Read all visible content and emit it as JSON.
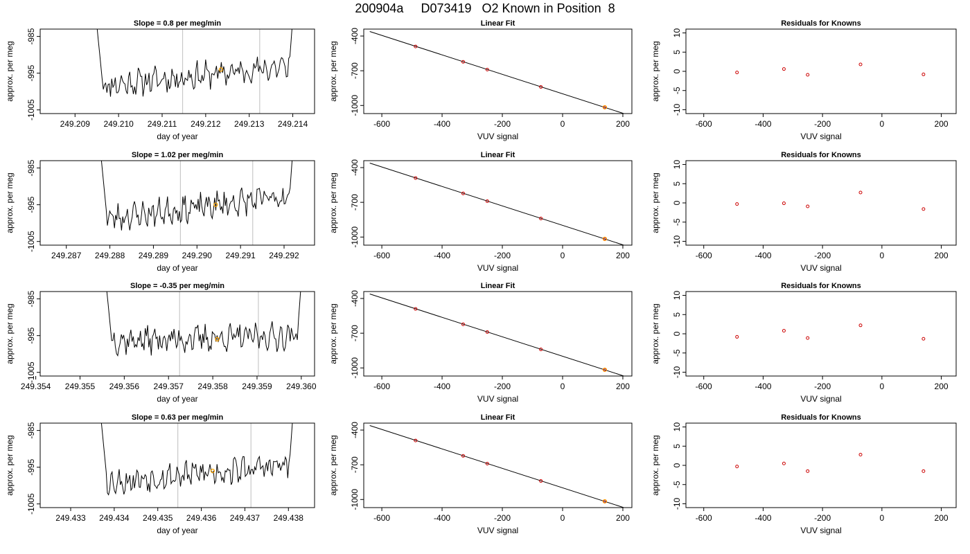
{
  "figure": {
    "title": "200904a     D073419   O2 Known in Position  8"
  },
  "colors": {
    "trace": "#000000",
    "highlight": "#ffa500",
    "residual": "#cc0000",
    "vline": "#c8c8c8",
    "frame": "#000000"
  },
  "chart_data": [
    {
      "type": "line",
      "title": "Slope =  0.8  per meg/min",
      "xlabel": "day of year",
      "ylabel": "approx. per meg",
      "xlim": [
        249.2082,
        249.2145
      ],
      "ylim": [
        -1006,
        -983
      ],
      "xticks": [
        "249.209",
        "249.210",
        "249.211",
        "249.212",
        "249.213",
        "249.214"
      ],
      "yticks": [
        "-985",
        "-995",
        "-1005"
      ],
      "vlines": [
        249.21147,
        249.21324
      ],
      "highlight": {
        "x": 249.21235,
        "y": -994
      },
      "trace": {
        "x_start": 249.2094,
        "x_end": 249.2141,
        "base": -997,
        "trend": 0.8,
        "seed": 11
      }
    },
    {
      "type": "scatter",
      "title": "Linear Fit",
      "xlabel": "VUV signal",
      "ylabel": "approx. per meg",
      "xlim": [
        -660,
        230
      ],
      "ylim": [
        -1070,
        -340
      ],
      "xticks": [
        "-600",
        "-400",
        "-200",
        "0",
        "200"
      ],
      "yticks": [
        "-400",
        "-700",
        "-1000"
      ],
      "points": {
        "x": [
          -488,
          -330,
          -250,
          -72,
          140
        ],
        "y": [
          -490,
          -623,
          -690,
          -840,
          -1016
        ]
      },
      "fit_line": {
        "x": [
          -640,
          220
        ],
        "y": [
          -361,
          -1084
        ]
      }
    },
    {
      "type": "scatter",
      "title": "Residuals for Knowns",
      "xlabel": "VUV signal",
      "ylabel": "approx. per meg",
      "xlim": [
        -660,
        250
      ],
      "ylim": [
        -11,
        11
      ],
      "xticks": [
        "-600",
        "-400",
        "-200",
        "0",
        "200"
      ],
      "yticks": [
        "-10",
        "-5",
        "0",
        "5",
        "10"
      ],
      "points": {
        "x": [
          -488,
          -330,
          -250,
          -72,
          140
        ],
        "y": [
          -0.3,
          0.6,
          -0.9,
          1.8,
          -0.8
        ]
      }
    },
    {
      "type": "line",
      "title": "Slope =  1.02  per meg/min",
      "xlabel": "day of year",
      "ylabel": "approx. per meg",
      "xlim": [
        249.2864,
        249.2927
      ],
      "ylim": [
        -1006,
        -983
      ],
      "xticks": [
        "249.287",
        "249.288",
        "249.289",
        "249.290",
        "249.291",
        "249.292"
      ],
      "yticks": [
        "-985",
        "-995",
        "-1005"
      ],
      "vlines": [
        249.28962,
        249.29128
      ],
      "highlight": {
        "x": 249.29043,
        "y": -995
      },
      "trace": {
        "x_start": 249.2877,
        "x_end": 249.2923,
        "base": -997,
        "trend": 1.02,
        "seed": 23
      }
    },
    {
      "type": "scatter",
      "title": "Linear Fit",
      "xlabel": "VUV signal",
      "ylabel": "approx. per meg",
      "xlim": [
        -660,
        230
      ],
      "ylim": [
        -1070,
        -340
      ],
      "xticks": [
        "-600",
        "-400",
        "-200",
        "0",
        "200"
      ],
      "yticks": [
        "-400",
        "-700",
        "-1000"
      ],
      "points": {
        "x": [
          -488,
          -330,
          -250,
          -72,
          140
        ],
        "y": [
          -490,
          -623,
          -690,
          -840,
          -1016
        ]
      },
      "fit_line": {
        "x": [
          -640,
          220
        ],
        "y": [
          -361,
          -1084
        ]
      }
    },
    {
      "type": "scatter",
      "title": "Residuals for Knowns",
      "xlabel": "VUV signal",
      "ylabel": "approx. per meg",
      "xlim": [
        -660,
        250
      ],
      "ylim": [
        -11,
        11
      ],
      "xticks": [
        "-600",
        "-400",
        "-200",
        "0",
        "200"
      ],
      "yticks": [
        "-10",
        "-5",
        "0",
        "5",
        "10"
      ],
      "points": {
        "x": [
          -488,
          -330,
          -250,
          -72,
          140
        ],
        "y": [
          -0.3,
          -0.1,
          -0.9,
          2.7,
          -1.6
        ]
      }
    },
    {
      "type": "line",
      "title": "Slope =  -0.35  per meg/min",
      "xlabel": "day of year",
      "ylabel": "approx. per meg",
      "xlim": [
        249.3541,
        249.3603
      ],
      "ylim": [
        -1006,
        -983
      ],
      "xticks": [
        "249.354",
        "249.355",
        "249.356",
        "249.357",
        "249.358",
        "249.359",
        "249.360"
      ],
      "yticks": [
        "-985",
        "-995",
        "-1005"
      ],
      "vlines": [
        249.35725,
        249.35903
      ],
      "highlight": {
        "x": 249.3581,
        "y": -996
      },
      "trace": {
        "x_start": 249.3555,
        "x_end": 249.3601,
        "base": -997,
        "trend": -0.35,
        "seed": 37
      }
    },
    {
      "type": "scatter",
      "title": "Linear Fit",
      "xlabel": "VUV signal",
      "ylabel": "approx. per meg",
      "xlim": [
        -660,
        230
      ],
      "ylim": [
        -1070,
        -340
      ],
      "xticks": [
        "-600",
        "-400",
        "-200",
        "0",
        "200"
      ],
      "yticks": [
        "-400",
        "-700",
        "-1000"
      ],
      "points": {
        "x": [
          -488,
          -330,
          -250,
          -72,
          140
        ],
        "y": [
          -490,
          -623,
          -690,
          -840,
          -1016
        ]
      },
      "fit_line": {
        "x": [
          -640,
          220
        ],
        "y": [
          -361,
          -1084
        ]
      }
    },
    {
      "type": "scatter",
      "title": "Residuals for Knowns",
      "xlabel": "VUV signal",
      "ylabel": "approx. per meg",
      "xlim": [
        -660,
        250
      ],
      "ylim": [
        -11,
        11
      ],
      "xticks": [
        "-600",
        "-400",
        "-200",
        "0",
        "200"
      ],
      "yticks": [
        "-10",
        "-5",
        "0",
        "5",
        "10"
      ],
      "points": {
        "x": [
          -488,
          -330,
          -250,
          -72,
          140
        ],
        "y": [
          -0.8,
          0.8,
          -1.1,
          2.2,
          -1.3
        ]
      }
    },
    {
      "type": "line",
      "title": "Slope =  0.63  per meg/min",
      "xlabel": "day of year",
      "ylabel": "approx. per meg",
      "xlim": [
        249.4323,
        249.4386
      ],
      "ylim": [
        -1006,
        -983
      ],
      "xticks": [
        "249.433",
        "249.434",
        "249.435",
        "249.436",
        "249.437",
        "249.438"
      ],
      "yticks": [
        "-985",
        "-995",
        "-1005"
      ],
      "vlines": [
        249.43546,
        249.43714
      ],
      "highlight": {
        "x": 249.43626,
        "y": -996
      },
      "trace": {
        "x_start": 249.4336,
        "x_end": 249.4382,
        "base": -998,
        "trend": 0.63,
        "seed": 53
      }
    },
    {
      "type": "scatter",
      "title": "Linear Fit",
      "xlabel": "VUV signal",
      "ylabel": "approx. per meg",
      "xlim": [
        -660,
        230
      ],
      "ylim": [
        -1070,
        -340
      ],
      "xticks": [
        "-600",
        "-400",
        "-200",
        "0",
        "200"
      ],
      "yticks": [
        "-400",
        "-700",
        "-1000"
      ],
      "points": {
        "x": [
          -488,
          -330,
          -250,
          -72,
          140
        ],
        "y": [
          -490,
          -623,
          -690,
          -840,
          -1016
        ]
      },
      "fit_line": {
        "x": [
          -640,
          220
        ],
        "y": [
          -361,
          -1084
        ]
      }
    },
    {
      "type": "scatter",
      "title": "Residuals for Knowns",
      "xlabel": "VUV signal",
      "ylabel": "approx. per meg",
      "xlim": [
        -660,
        250
      ],
      "ylim": [
        -11,
        11
      ],
      "xticks": [
        "-600",
        "-400",
        "-200",
        "0",
        "200"
      ],
      "yticks": [
        "-10",
        "-5",
        "0",
        "5",
        "10"
      ],
      "points": {
        "x": [
          -488,
          -330,
          -250,
          -72,
          140
        ],
        "y": [
          -0.3,
          0.5,
          -1.5,
          2.8,
          -1.5
        ]
      }
    }
  ]
}
